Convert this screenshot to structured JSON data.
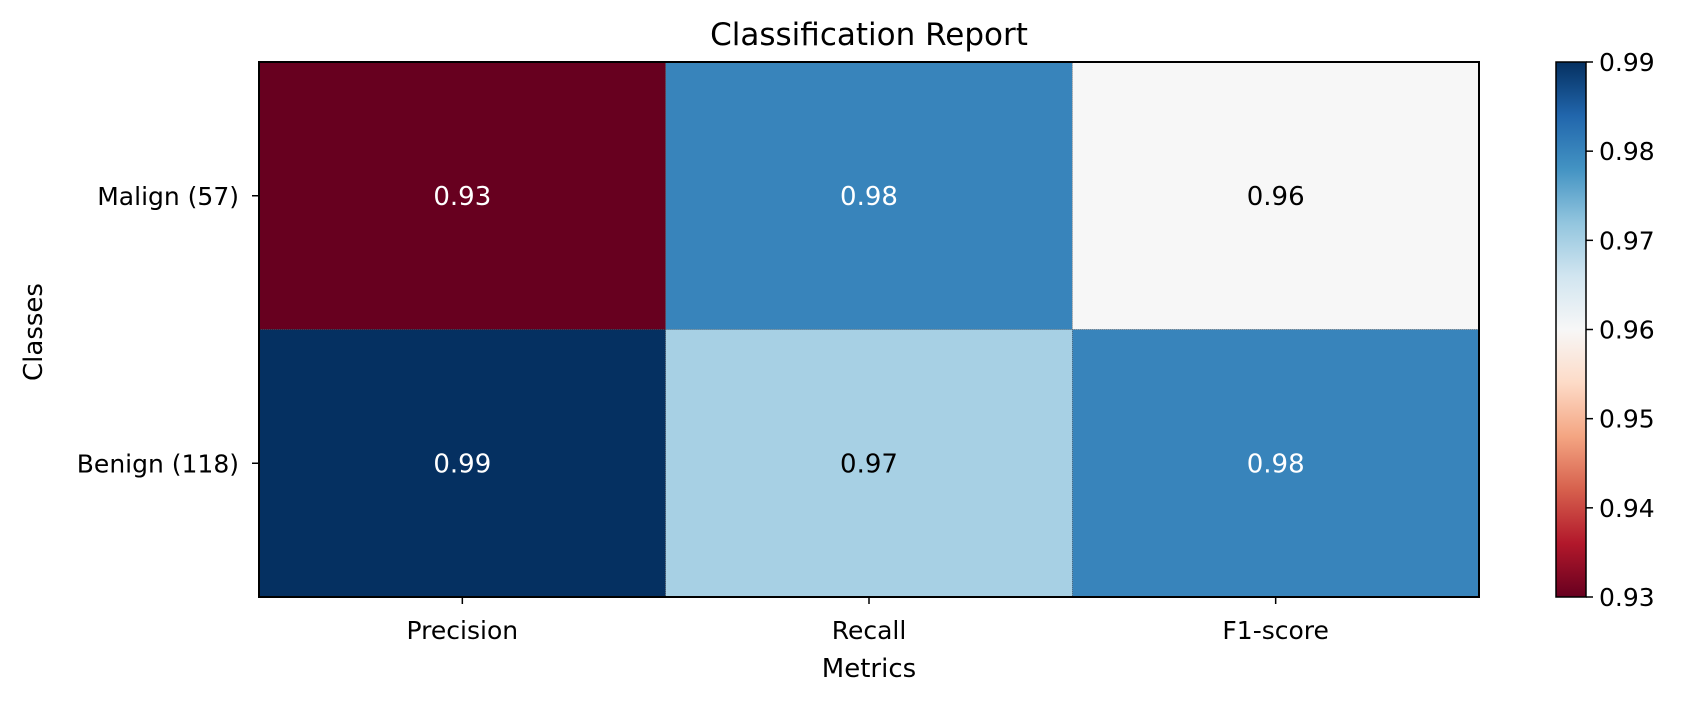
{
  "chart_data": {
    "type": "heatmap",
    "title": "Classification Report",
    "xlabel": "Metrics",
    "ylabel": "Classes",
    "x_categories": [
      "Precision",
      "Recall",
      "F1-score"
    ],
    "y_categories": [
      "Malign (57)",
      "Benign (118)"
    ],
    "values": [
      [
        0.93,
        0.98,
        0.96
      ],
      [
        0.99,
        0.97,
        0.98
      ]
    ],
    "cell_labels": [
      [
        "0.93",
        "0.98",
        "0.96"
      ],
      [
        "0.99",
        "0.97",
        "0.98"
      ]
    ],
    "colormap": "RdBu",
    "colorbar": {
      "vmin": 0.93,
      "vmax": 0.99,
      "ticks": [
        0.93,
        0.94,
        0.95,
        0.96,
        0.97,
        0.98,
        0.99
      ],
      "tick_labels": [
        "0.93",
        "0.94",
        "0.95",
        "0.96",
        "0.97",
        "0.98",
        "0.99"
      ]
    },
    "grid": false
  },
  "colors": {
    "dark_text": "#000000",
    "light_text": "#ffffff",
    "colormap_stops": [
      "#67001f",
      "#b2182b",
      "#d6604d",
      "#f4a582",
      "#fddbc7",
      "#f7f7f7",
      "#d1e5f0",
      "#92c5de",
      "#4393c3",
      "#2166ac",
      "#053061"
    ]
  }
}
